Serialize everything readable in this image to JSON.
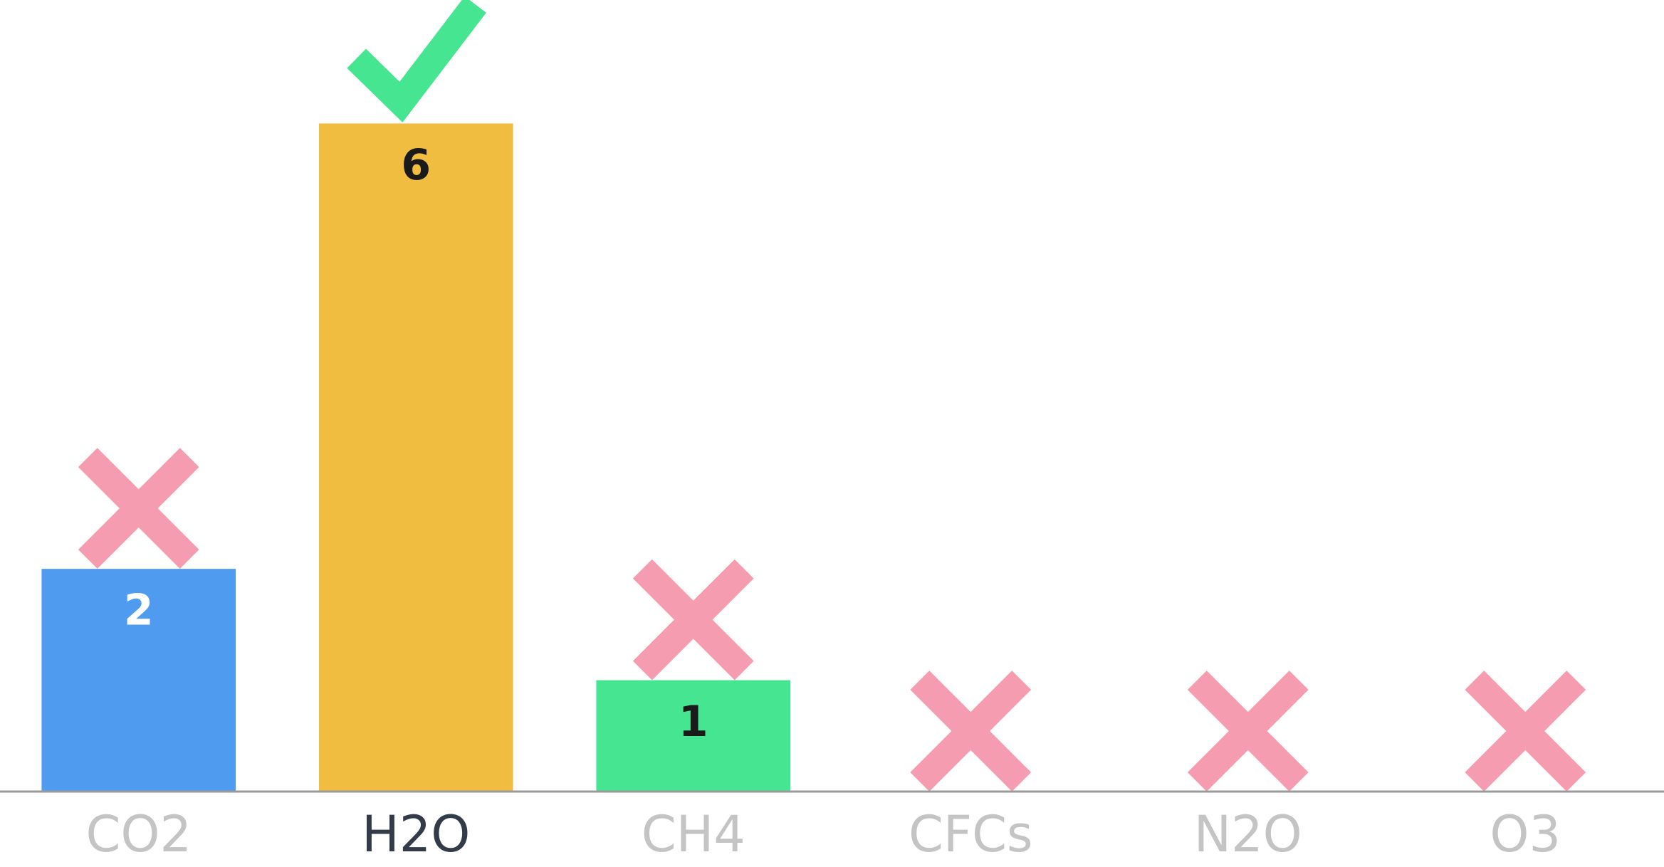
{
  "chart_data": {
    "type": "bar",
    "categories": [
      "CO2",
      "H2O",
      "CH4",
      "CFCs",
      "N2O",
      "O3"
    ],
    "values": [
      2,
      6,
      1,
      0,
      0,
      0
    ],
    "colors": [
      "#4f9bf0",
      "#f0bd40",
      "#45e591",
      "#4f9bf0",
      "#f0bd40",
      "#45e591"
    ],
    "label_colors": [
      "#ffffff",
      "#1a1a1a",
      "#1a1a1a",
      "#1a1a1a",
      "#1a1a1a",
      "#1a1a1a"
    ],
    "highlight": "H2O",
    "ylim": [
      0,
      7
    ]
  }
}
